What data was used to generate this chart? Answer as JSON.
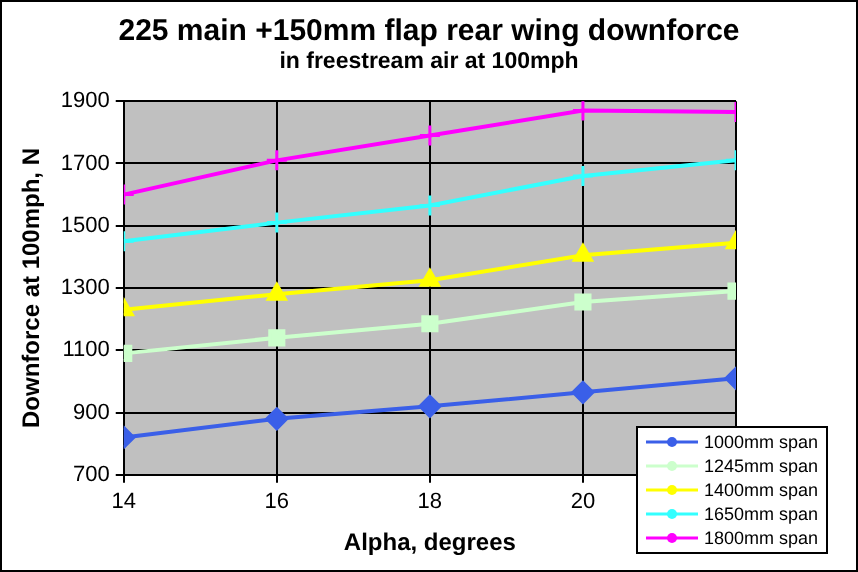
{
  "chart_data": {
    "type": "line",
    "title": "225 main +150mm flap rear wing downforce",
    "subtitle": "in freestream air at 100mph",
    "xlabel": "Alpha, degrees",
    "ylabel": "Downforce at 100mph, N",
    "x": [
      14,
      16,
      18,
      20,
      22
    ],
    "xlim": [
      14,
      22
    ],
    "xticks": [
      14,
      16,
      18,
      20,
      {
        "value": 22,
        "label": null
      }
    ],
    "ylim": [
      700,
      1900
    ],
    "yticks": [
      700,
      900,
      1100,
      1300,
      1500,
      1700,
      1900
    ],
    "grid": true,
    "legend": "bottom right",
    "line_style": "solid",
    "series": [
      {
        "name": "1000mm span",
        "color": "#3a5fe8",
        "marker": "diamond",
        "values": [
          820,
          880,
          920,
          965,
          1010
        ]
      },
      {
        "name": "1245mm span",
        "color": "#ccffcc",
        "marker": "square",
        "values": [
          1090,
          1140,
          1185,
          1255,
          1290
        ]
      },
      {
        "name": "1400mm span",
        "color": "#ffff00",
        "marker": "triangle",
        "values": [
          1230,
          1280,
          1325,
          1405,
          1445
        ]
      },
      {
        "name": "1650mm span",
        "color": "#33ffff",
        "marker": "cross",
        "values": [
          1450,
          1510,
          1565,
          1660,
          1710
        ]
      },
      {
        "name": "1800mm span",
        "color": "#ff00ff",
        "marker": "cross",
        "values": [
          1600,
          1710,
          1790,
          1870,
          1865
        ]
      }
    ]
  }
}
